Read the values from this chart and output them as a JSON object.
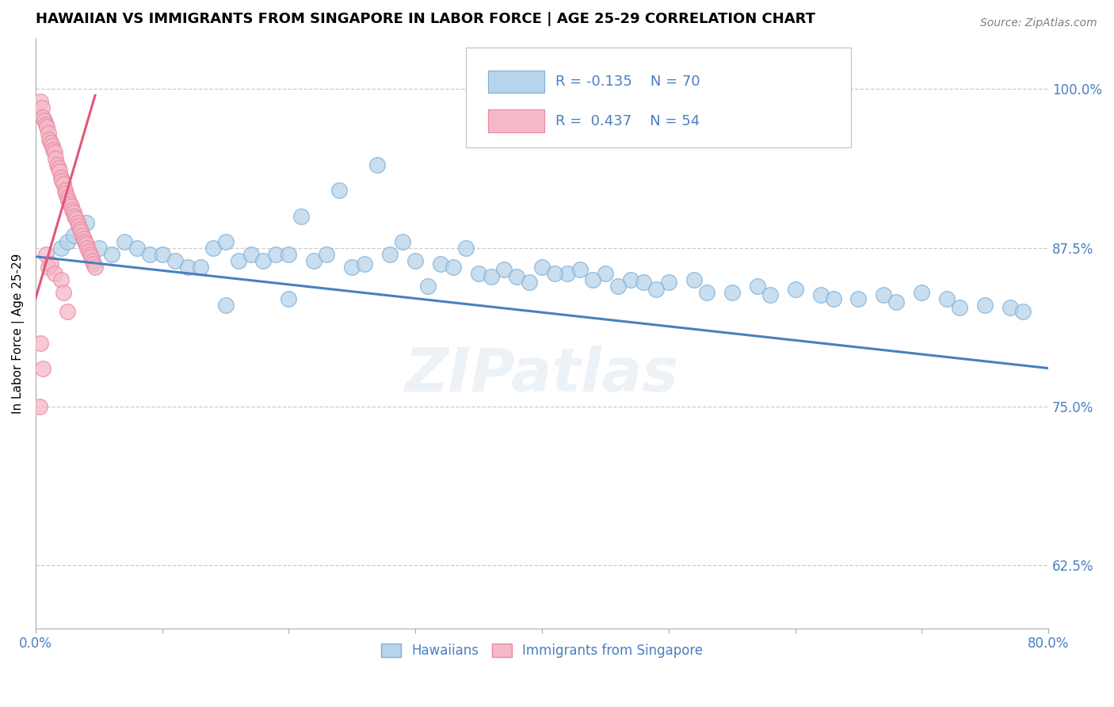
{
  "title": "HAWAIIAN VS IMMIGRANTS FROM SINGAPORE IN LABOR FORCE | AGE 25-29 CORRELATION CHART",
  "source": "Source: ZipAtlas.com",
  "ylabel": "In Labor Force | Age 25-29",
  "xmin": 0.0,
  "xmax": 0.8,
  "ymin": 0.575,
  "ymax": 1.04,
  "yticks_right": [
    0.625,
    0.75,
    0.875,
    1.0
  ],
  "ytick_labels_right": [
    "62.5%",
    "75.0%",
    "87.5%",
    "100.0%"
  ],
  "blue_R": -0.135,
  "blue_N": 70,
  "pink_R": 0.437,
  "pink_N": 54,
  "blue_color": "#b8d4ea",
  "blue_edge": "#7fb0d8",
  "pink_color": "#f5b8c8",
  "pink_edge": "#e88aa0",
  "blue_line_color": "#4a7fc1",
  "pink_line_color": "#e05878",
  "legend_label_blue": "Hawaiians",
  "legend_label_pink": "Immigrants from Singapore",
  "watermark": "ZIPatlas",
  "blue_x": [
    0.02,
    0.025,
    0.03,
    0.035,
    0.04,
    0.05,
    0.06,
    0.07,
    0.08,
    0.09,
    0.1,
    0.11,
    0.12,
    0.13,
    0.14,
    0.15,
    0.16,
    0.17,
    0.18,
    0.19,
    0.2,
    0.22,
    0.23,
    0.25,
    0.26,
    0.28,
    0.3,
    0.32,
    0.33,
    0.35,
    0.37,
    0.38,
    0.4,
    0.42,
    0.43,
    0.45,
    0.47,
    0.48,
    0.5,
    0.52,
    0.55,
    0.57,
    0.6,
    0.62,
    0.65,
    0.67,
    0.7,
    0.72,
    0.75,
    0.77,
    0.21,
    0.24,
    0.27,
    0.29,
    0.31,
    0.34,
    0.36,
    0.39,
    0.41,
    0.44,
    0.46,
    0.49,
    0.53,
    0.58,
    0.63,
    0.68,
    0.73,
    0.78,
    0.15,
    0.2
  ],
  "blue_y": [
    0.875,
    0.88,
    0.885,
    0.89,
    0.895,
    0.875,
    0.87,
    0.88,
    0.875,
    0.87,
    0.87,
    0.865,
    0.86,
    0.86,
    0.875,
    0.88,
    0.865,
    0.87,
    0.865,
    0.87,
    0.87,
    0.865,
    0.87,
    0.86,
    0.862,
    0.87,
    0.865,
    0.862,
    0.86,
    0.855,
    0.858,
    0.852,
    0.86,
    0.855,
    0.858,
    0.855,
    0.85,
    0.848,
    0.848,
    0.85,
    0.84,
    0.845,
    0.842,
    0.838,
    0.835,
    0.838,
    0.84,
    0.835,
    0.83,
    0.828,
    0.9,
    0.92,
    0.94,
    0.88,
    0.845,
    0.875,
    0.852,
    0.848,
    0.855,
    0.85,
    0.845,
    0.842,
    0.84,
    0.838,
    0.835,
    0.832,
    0.828,
    0.825,
    0.83,
    0.835
  ],
  "pink_x": [
    0.004,
    0.005,
    0.006,
    0.007,
    0.008,
    0.009,
    0.01,
    0.011,
    0.012,
    0.013,
    0.014,
    0.015,
    0.016,
    0.017,
    0.018,
    0.019,
    0.02,
    0.021,
    0.022,
    0.023,
    0.024,
    0.025,
    0.026,
    0.027,
    0.028,
    0.029,
    0.03,
    0.031,
    0.032,
    0.033,
    0.034,
    0.035,
    0.036,
    0.037,
    0.038,
    0.039,
    0.04,
    0.041,
    0.042,
    0.043,
    0.044,
    0.045,
    0.046,
    0.047,
    0.008,
    0.01,
    0.012,
    0.015,
    0.02,
    0.004,
    0.006,
    0.003,
    0.022,
    0.025
  ],
  "pink_y": [
    0.99,
    0.985,
    0.978,
    0.975,
    0.972,
    0.97,
    0.965,
    0.96,
    0.958,
    0.955,
    0.952,
    0.95,
    0.945,
    0.94,
    0.938,
    0.935,
    0.93,
    0.928,
    0.925,
    0.92,
    0.918,
    0.915,
    0.912,
    0.91,
    0.908,
    0.905,
    0.903,
    0.9,
    0.898,
    0.895,
    0.892,
    0.89,
    0.888,
    0.885,
    0.882,
    0.88,
    0.878,
    0.875,
    0.872,
    0.87,
    0.868,
    0.865,
    0.862,
    0.86,
    0.87,
    0.86,
    0.862,
    0.855,
    0.85,
    0.8,
    0.78,
    0.75,
    0.84,
    0.825
  ],
  "blue_trend_x": [
    0.0,
    0.8
  ],
  "blue_trend_y": [
    0.868,
    0.78
  ],
  "pink_trend_x": [
    0.0,
    0.047
  ],
  "pink_trend_y": [
    0.835,
    0.995
  ]
}
